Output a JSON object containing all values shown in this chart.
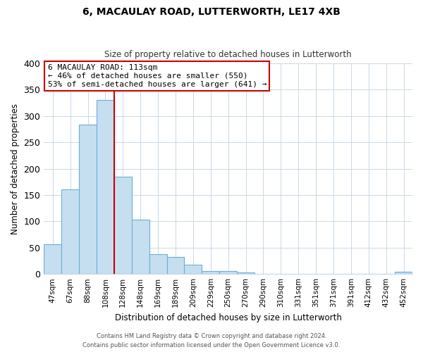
{
  "title": "6, MACAULAY ROAD, LUTTERWORTH, LE17 4XB",
  "subtitle": "Size of property relative to detached houses in Lutterworth",
  "xlabel": "Distribution of detached houses by size in Lutterworth",
  "ylabel": "Number of detached properties",
  "bar_labels": [
    "47sqm",
    "67sqm",
    "88sqm",
    "108sqm",
    "128sqm",
    "148sqm",
    "169sqm",
    "189sqm",
    "209sqm",
    "229sqm",
    "250sqm",
    "270sqm",
    "290sqm",
    "310sqm",
    "331sqm",
    "351sqm",
    "371sqm",
    "391sqm",
    "412sqm",
    "432sqm",
    "452sqm"
  ],
  "bar_heights": [
    57,
    160,
    284,
    330,
    185,
    103,
    37,
    32,
    18,
    6,
    5,
    3,
    0,
    0,
    0,
    0,
    0,
    0,
    0,
    0,
    4
  ],
  "bar_color": "#c5dff0",
  "bar_edge_color": "#6baed6",
  "highlight_bar_index": 3,
  "highlight_color": "#cc0000",
  "ylim": [
    0,
    400
  ],
  "yticks": [
    0,
    50,
    100,
    150,
    200,
    250,
    300,
    350,
    400
  ],
  "annotation_title": "6 MACAULAY ROAD: 113sqm",
  "annotation_line1": "← 46% of detached houses are smaller (550)",
  "annotation_line2": "53% of semi-detached houses are larger (641) →",
  "footer_line1": "Contains HM Land Registry data © Crown copyright and database right 2024.",
  "footer_line2": "Contains public sector information licensed under the Open Government Licence v3.0.",
  "background_color": "#ffffff",
  "grid_color": "#c8d8e8"
}
